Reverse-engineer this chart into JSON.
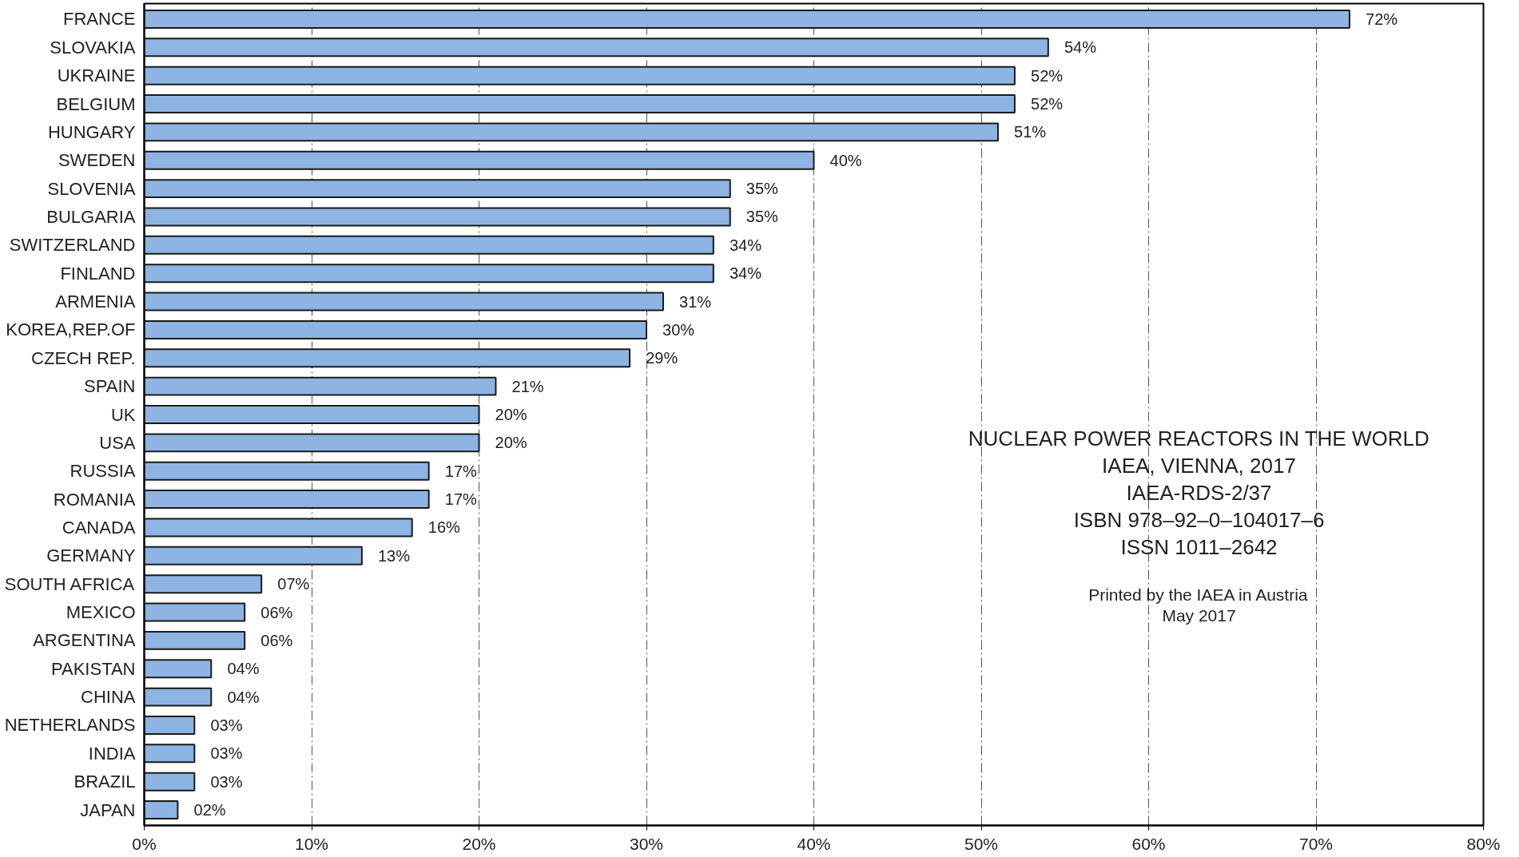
{
  "chart_data": {
    "type": "bar",
    "orientation": "horizontal",
    "categories": [
      "FRANCE",
      "SLOVAKIA",
      "UKRAINE",
      "BELGIUM",
      "HUNGARY",
      "SWEDEN",
      "SLOVENIA",
      "BULGARIA",
      "SWITZERLAND",
      "FINLAND",
      "ARMENIA",
      "KOREA,REP.OF",
      "CZECH REP.",
      "SPAIN",
      "UK",
      "USA",
      "RUSSIA",
      "ROMANIA",
      "CANADA",
      "GERMANY",
      "SOUTH AFRICA",
      "MEXICO",
      "ARGENTINA",
      "PAKISTAN",
      "CHINA",
      "NETHERLANDS",
      "INDIA",
      "BRAZIL",
      "JAPAN"
    ],
    "values": [
      72,
      54,
      52,
      52,
      51,
      40,
      35,
      35,
      34,
      34,
      31,
      30,
      29,
      21,
      20,
      20,
      17,
      17,
      16,
      13,
      7,
      6,
      6,
      4,
      4,
      3,
      3,
      3,
      2
    ],
    "value_labels": [
      "72%",
      "54%",
      "52%",
      "52%",
      "51%",
      "40%",
      "35%",
      "35%",
      "34%",
      "34%",
      "31%",
      "30%",
      "29%",
      "21%",
      "20%",
      "20%",
      "17%",
      "17%",
      "16%",
      "13%",
      "07%",
      "06%",
      "06%",
      "04%",
      "04%",
      "03%",
      "03%",
      "03%",
      "02%"
    ],
    "color": "#8db4e2",
    "xlim": [
      0,
      80
    ],
    "xticks": [
      {
        "value": 0,
        "label": "0%"
      },
      {
        "value": 10,
        "label": "10%"
      },
      {
        "value": 20,
        "label": "20%"
      },
      {
        "value": 30,
        "label": "30%"
      },
      {
        "value": 40,
        "label": "40%"
      },
      {
        "value": 50,
        "label": "50%"
      },
      {
        "value": 60,
        "label": "60%"
      },
      {
        "value": 70,
        "label": "70%"
      },
      {
        "value": 80,
        "label": "80%"
      }
    ],
    "grid": "x",
    "line_style": "dashed",
    "annotations": [
      "NUCLEAR POWER REACTORS IN THE WORLD",
      "IAEA, VIENNA, 2017",
      "IAEA-RDS-2/37",
      "ISBN 978–92–0–104017–6",
      "ISSN 1011–2642",
      "Printed by the IAEA in Austria",
      "May 2017"
    ]
  }
}
